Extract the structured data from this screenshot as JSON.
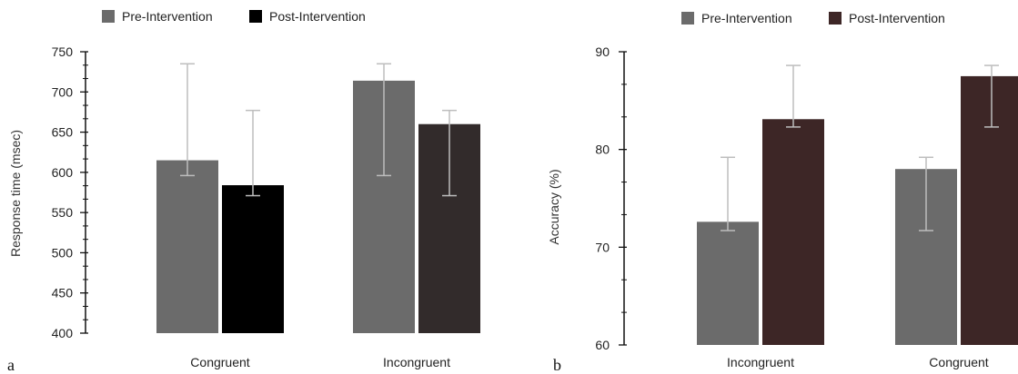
{
  "chart_data": [
    {
      "type": "bar",
      "panel": "a",
      "ylabel": "Response time (msec)",
      "ylim": [
        400,
        750
      ],
      "yticks": [
        400,
        450,
        500,
        550,
        600,
        650,
        700,
        750
      ],
      "categories": [
        "Congruent",
        "Incongruent"
      ],
      "legend": {
        "position": "top-left",
        "entries": [
          "Pre-Intervention",
          "Post-Intervention"
        ]
      },
      "series": [
        {
          "name": "Pre-Intervention",
          "values": [
            615,
            714
          ],
          "error_low": [
            596,
            596
          ],
          "error_high": [
            735,
            735
          ],
          "colors": [
            "#6b6b6b",
            "#6b6b6b"
          ]
        },
        {
          "name": "Post-Intervention",
          "values": [
            584,
            660
          ],
          "error_low": [
            571,
            571
          ],
          "error_high": [
            677,
            677
          ],
          "colors": [
            "#000000",
            "#322b2b"
          ]
        }
      ]
    },
    {
      "type": "bar",
      "panel": "b",
      "ylabel": "Accuracy (%)",
      "ylim": [
        60,
        90
      ],
      "yticks": [
        60,
        70,
        80,
        90
      ],
      "categories": [
        "Incongruent",
        "Congruent"
      ],
      "legend": {
        "position": "top-left",
        "entries": [
          "Pre-Intervention",
          "Post-Intervention"
        ]
      },
      "series": [
        {
          "name": "Pre-Intervention",
          "values": [
            72.6,
            78.0
          ],
          "error_low": [
            71.7,
            71.7
          ],
          "error_high": [
            79.2,
            79.2
          ],
          "colors": [
            "#6b6b6b",
            "#6b6b6b"
          ]
        },
        {
          "name": "Post-Intervention",
          "values": [
            83.1,
            87.5
          ],
          "error_low": [
            82.3,
            82.3
          ],
          "error_high": [
            88.6,
            88.6
          ],
          "colors": [
            "#3d2626",
            "#3d2626"
          ]
        }
      ]
    }
  ],
  "colors": {
    "pre": "#6b6b6b",
    "post": "#3d2626",
    "error_bar": "#bdbdbd",
    "axis": "#111111"
  }
}
